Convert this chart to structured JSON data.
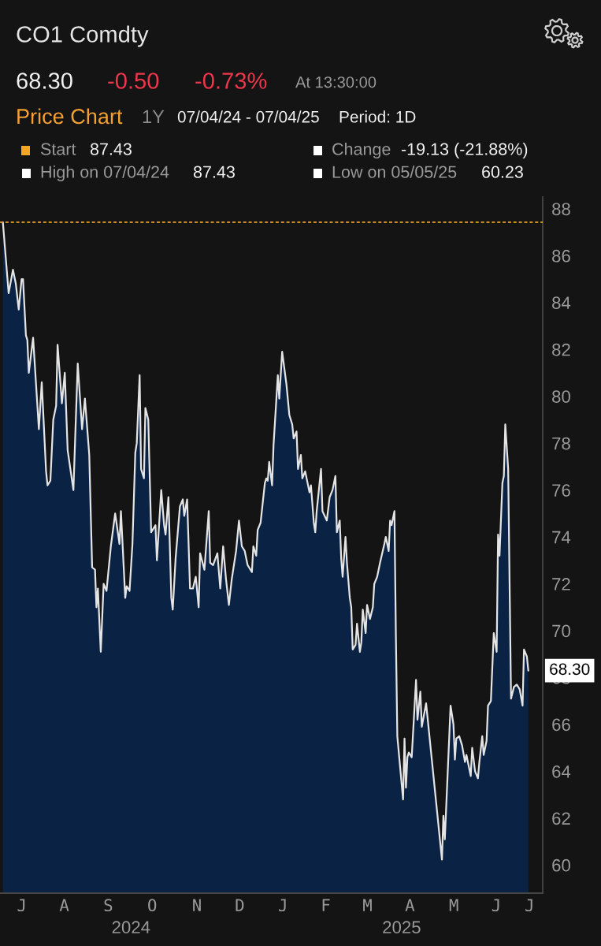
{
  "chart_data": {
    "type": "area",
    "title": "CO1 Comdty",
    "subtitle": "Price Chart",
    "x": [
      "2024-07-04",
      "2024-07-08",
      "2024-07-11",
      "2024-07-13",
      "2024-07-15",
      "2024-07-17",
      "2024-07-18",
      "2024-07-20",
      "2024-07-21",
      "2024-07-22",
      "2024-07-25",
      "2024-07-29",
      "2024-07-31",
      "2024-08-03",
      "2024-08-04",
      "2024-08-06",
      "2024-08-08",
      "2024-08-10",
      "2024-08-11",
      "2024-08-14",
      "2024-08-16",
      "2024-08-18",
      "2024-08-22",
      "2024-08-25",
      "2024-08-28",
      "2024-08-30",
      "2024-09-02",
      "2024-09-04",
      "2024-09-06",
      "2024-09-07",
      "2024-09-08",
      "2024-09-10",
      "2024-09-12",
      "2024-09-14",
      "2024-09-17",
      "2024-09-20",
      "2024-09-23",
      "2024-09-24",
      "2024-09-27",
      "2024-09-28",
      "2024-09-30",
      "2024-10-02",
      "2024-10-04",
      "2024-10-05",
      "2024-10-07",
      "2024-10-08",
      "2024-10-10",
      "2024-10-11",
      "2024-10-13",
      "2024-10-15",
      "2024-10-18",
      "2024-10-19",
      "2024-10-22",
      "2024-10-24",
      "2024-10-25",
      "2024-10-27",
      "2024-10-29",
      "2024-10-30",
      "2024-11-01",
      "2024-11-04",
      "2024-11-06",
      "2024-11-07",
      "2024-11-09",
      "2024-11-11",
      "2024-11-13",
      "2024-11-15",
      "2024-11-17",
      "2024-11-18",
      "2024-11-21",
      "2024-11-24",
      "2024-11-25",
      "2024-11-27",
      "2024-11-30",
      "2024-12-02",
      "2024-12-04",
      "2024-12-06",
      "2024-12-08",
      "2024-12-10",
      "2024-12-13",
      "2024-12-15",
      "2024-12-17",
      "2024-12-19",
      "2024-12-21",
      "2024-12-24",
      "2024-12-25",
      "2024-12-27",
      "2024-12-28",
      "2024-12-30",
      "2025-01-02",
      "2025-01-03",
      "2025-01-04",
      "2025-01-05",
      "2025-01-07",
      "2025-01-08",
      "2025-01-11",
      "2025-01-12",
      "2025-01-14",
      "2025-01-17",
      "2025-01-19",
      "2025-01-21",
      "2025-01-22",
      "2025-01-24",
      "2025-01-25",
      "2025-01-27",
      "2025-01-28",
      "2025-01-30",
      "2025-02-02",
      "2025-02-03",
      "2025-02-05",
      "2025-02-06",
      "2025-02-07",
      "2025-02-10",
      "2025-02-11",
      "2025-02-14",
      "2025-02-16",
      "2025-02-18",
      "2025-02-20",
      "2025-02-21",
      "2025-02-23",
      "2025-02-24",
      "2025-02-25",
      "2025-02-27",
      "2025-02-28",
      "2025-03-02",
      "2025-03-03",
      "2025-03-04",
      "2025-03-06",
      "2025-03-07",
      "2025-03-09",
      "2025-03-10",
      "2025-03-11",
      "2025-03-13",
      "2025-03-14",
      "2025-03-16",
      "2025-03-18",
      "2025-03-19",
      "2025-03-21",
      "2025-03-23",
      "2025-03-26",
      "2025-03-27",
      "2025-03-29",
      "2025-03-30",
      "2025-03-31",
      "2025-04-02",
      "2025-04-03",
      "2025-04-04",
      "2025-04-08",
      "2025-04-09",
      "2025-04-10",
      "2025-04-11",
      "2025-04-12",
      "2025-04-14",
      "2025-04-17",
      "2025-04-18",
      "2025-04-20",
      "2025-04-21",
      "2025-04-24",
      "2025-05-05",
      "2025-05-06",
      "2025-05-07",
      "2025-05-11",
      "2025-05-13",
      "2025-05-14",
      "2025-05-15",
      "2025-05-17",
      "2025-05-19",
      "2025-05-21",
      "2025-05-22",
      "2025-05-25",
      "2025-05-26",
      "2025-05-28",
      "2025-05-30",
      "2025-05-31",
      "2025-06-02",
      "2025-06-03",
      "2025-06-05",
      "2025-06-06",
      "2025-06-08",
      "2025-06-10",
      "2025-06-12",
      "2025-06-13",
      "2025-06-14",
      "2025-06-16",
      "2025-06-17",
      "2025-06-18",
      "2025-06-20",
      "2025-06-22",
      "2025-06-24",
      "2025-06-26",
      "2025-06-28",
      "2025-06-30",
      "2025-07-01",
      "2025-07-03",
      "2025-07-04"
    ],
    "series": [
      {
        "color": "#0a2244",
        "values": [
          87.43,
          84.4,
          85.4,
          84.8,
          83.7,
          85.0,
          85.0,
          82.6,
          82.4,
          81.0,
          82.5,
          78.6,
          80.6,
          76.8,
          76.2,
          76.4,
          79.0,
          79.6,
          82.2,
          79.7,
          81.0,
          77.7,
          76.0,
          81.4,
          78.6,
          79.9,
          77.5,
          72.7,
          72.6,
          71.0,
          71.8,
          69.1,
          72.0,
          71.7,
          73.6,
          75.0,
          73.7,
          75.1,
          71.4,
          71.9,
          71.7,
          73.7,
          77.6,
          78.0,
          80.9,
          76.9,
          76.5,
          79.5,
          79.0,
          74.2,
          74.5,
          73.0,
          76.0,
          74.5,
          74.1,
          75.7,
          71.4,
          70.9,
          73.1,
          75.3,
          75.6,
          74.9,
          75.6,
          71.8,
          71.8,
          72.3,
          71.0,
          73.3,
          72.6,
          75.1,
          72.9,
          72.8,
          73.3,
          71.8,
          73.6,
          72.2,
          71.1,
          72.2,
          73.4,
          74.7,
          73.6,
          73.4,
          72.8,
          72.5,
          73.6,
          73.2,
          74.3,
          74.6,
          76.3,
          76.5,
          76.4,
          77.2,
          76.2,
          77.9,
          80.9,
          79.9,
          81.9,
          80.5,
          79.2,
          78.8,
          78.2,
          78.5,
          76.9,
          77.5,
          76.5,
          76.8,
          75.9,
          76.2,
          74.6,
          74.2,
          75.1,
          76.9,
          75.1,
          74.7,
          75.7,
          76.0,
          76.6,
          74.2,
          74.7,
          73.1,
          72.3,
          74.0,
          72.9,
          71.4,
          71.0,
          69.2,
          69.4,
          70.3,
          69.1,
          69.5,
          70.9,
          69.9,
          71.1,
          70.5,
          71.0,
          72.0,
          72.3,
          72.9,
          73.7,
          74.0,
          73.4,
          74.7,
          74.5,
          75.1,
          69.8,
          65.5,
          62.8,
          65.4,
          63.3,
          64.6,
          64.8,
          64.6,
          67.9,
          66.2,
          67.4,
          65.9,
          66.9,
          60.23,
          62.1,
          61.1,
          66.8,
          66.0,
          64.5,
          65.4,
          65.5,
          65.1,
          64.4,
          64.7,
          63.8,
          65.0,
          64.0,
          63.7,
          64.4,
          65.5,
          64.7,
          65.3,
          66.8,
          67.0,
          69.9,
          69.1,
          74.1,
          73.2,
          76.3,
          76.6,
          78.8,
          76.9,
          67.1,
          67.6,
          67.7,
          67.5,
          66.8,
          69.2,
          68.9,
          68.3
        ]
      }
    ],
    "xlim": [
      "2024-07-02",
      "2025-07-14"
    ],
    "xticks": [
      {
        "value": "2024-10-01",
        "label": "2024"
      },
      {
        "value": "2025-04-07",
        "label": "2025"
      }
    ],
    "ylim": [
      58.8,
      88.5
    ],
    "yticks": [
      60,
      62,
      64,
      66,
      68,
      70,
      72,
      74,
      76,
      78,
      80,
      82,
      84,
      86,
      88
    ],
    "ref_lines": [
      {
        "axis": "y",
        "value": 87.43,
        "label": "Start",
        "color": "#f5a623",
        "line_style": "dashed"
      }
    ],
    "annotations": [
      "68.30",
      "-0.50",
      "-0.73%",
      "At 13:30:00",
      "1Y",
      "07/04/24 - 07/04/25",
      "Period: 1D",
      "87.43",
      "Change",
      "-19.13 (-21.88%)",
      "High on 07/04/24",
      "87.43",
      "Low on 05/05/25",
      "60.23",
      "J",
      "A",
      "S",
      "O",
      "N",
      "D",
      "J",
      "F",
      "M",
      "A",
      "M",
      "J",
      "J",
      {
        "text": "68.30",
        "x": "2025-07-04",
        "y": 68.3
      }
    ]
  }
}
